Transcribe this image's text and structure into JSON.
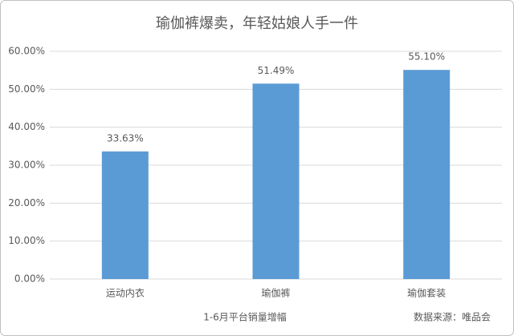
{
  "chart_data": {
    "type": "bar",
    "title": "瑜伽裤爆卖，年轻姑娘人手一件",
    "categories": [
      "运动内衣",
      "瑜伽裤",
      "瑜伽套装"
    ],
    "values": [
      33.63,
      51.49,
      55.1
    ],
    "value_labels": [
      "33.63%",
      "51.49%",
      "55.10%"
    ],
    "color": "#5b9bd5",
    "ylim": [
      0,
      60
    ],
    "yticks": [
      {
        "value": 0,
        "label": "0.00%"
      },
      {
        "value": 10,
        "label": "10.00%"
      },
      {
        "value": 20,
        "label": "20.00%"
      },
      {
        "value": 30,
        "label": "30.00%"
      },
      {
        "value": 40,
        "label": "40.00%"
      },
      {
        "value": 50,
        "label": "50.00%"
      },
      {
        "value": 60,
        "label": "60.00%"
      }
    ],
    "grid": true,
    "x_label": "1-6月平台销量增幅",
    "source": "数据来源：唯品会"
  }
}
